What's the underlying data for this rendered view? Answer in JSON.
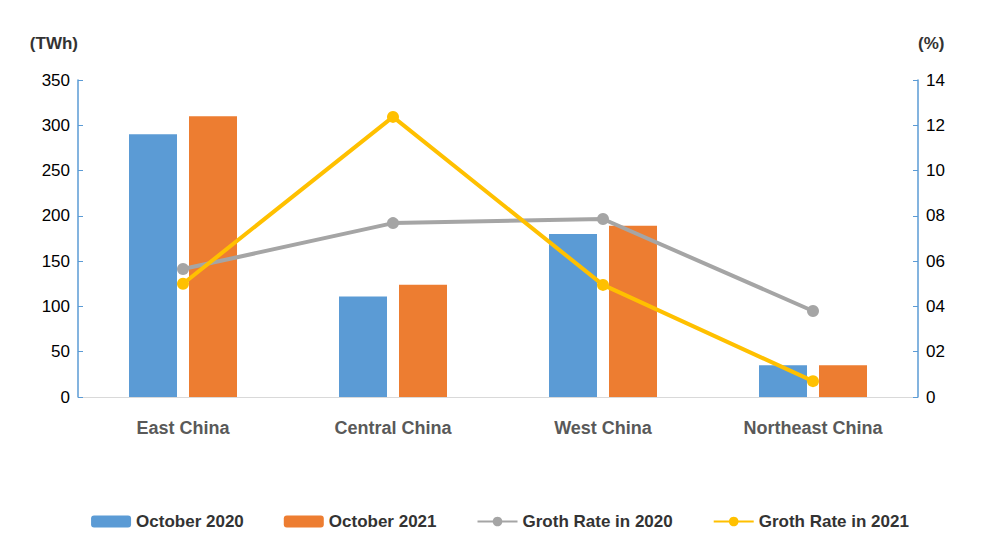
{
  "chart_data": {
    "type": "bar",
    "categories": [
      "East China",
      "Central China",
      "West China",
      "Northeast China"
    ],
    "series": [
      {
        "name": "October 2020",
        "type": "bar",
        "color": "#5b9bd5",
        "values": [
          290,
          111,
          180,
          35
        ]
      },
      {
        "name": "October 2021",
        "type": "bar",
        "color": "#ed7d31",
        "values": [
          310,
          124,
          189,
          35
        ]
      },
      {
        "name": "Groth Rate in 2020",
        "type": "line",
        "axis": "y2",
        "color": "#a5a5a5",
        "marker": "circle",
        "values": [
          5.65,
          7.68,
          7.86,
          3.8
        ]
      },
      {
        "name": "Groth Rate in 2021",
        "type": "line",
        "axis": "y2",
        "color": "#ffc000",
        "marker": "circle",
        "values": [
          5.0,
          12.37,
          4.95,
          0.7
        ]
      }
    ],
    "y_label": "(TWh)",
    "y2_label": "(%)",
    "ylim": [
      0,
      350
    ],
    "yticks": [
      0,
      50,
      100,
      150,
      200,
      250,
      300,
      350
    ],
    "y2lim": [
      0,
      14
    ],
    "y2ticks": [
      0,
      {
        "value": 2,
        "label": "02"
      },
      {
        "value": 4,
        "label": "04"
      },
      {
        "value": 6,
        "label": "06"
      },
      {
        "value": 8,
        "label": "08"
      },
      10,
      12,
      14
    ],
    "grid": false,
    "legend": "bottom"
  }
}
